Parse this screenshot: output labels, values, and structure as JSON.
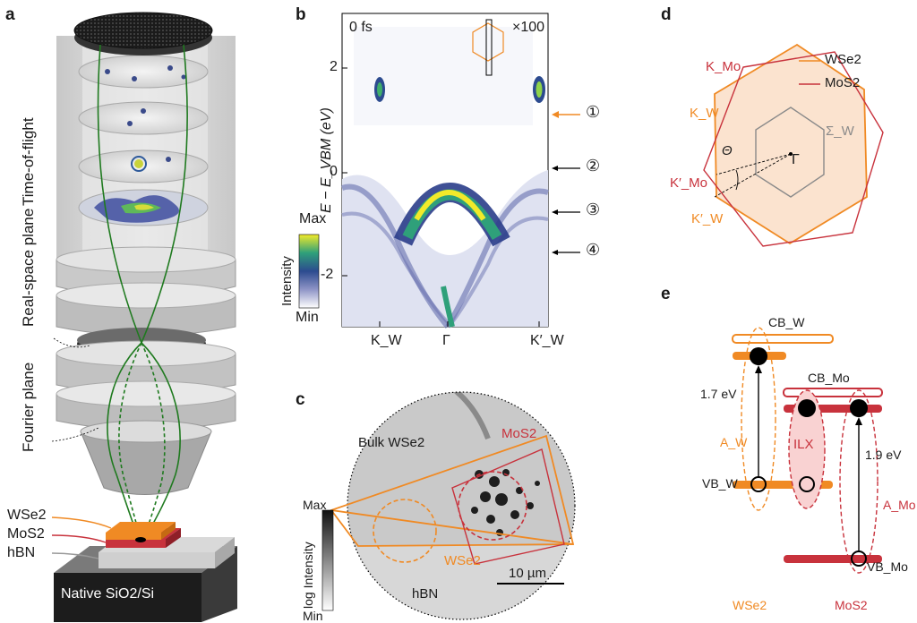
{
  "panels": {
    "a": {
      "letter": "a",
      "detector_labels": [
        "Time-of-flight",
        "Real-space plane",
        "Fourier plane"
      ],
      "layers": [
        "WSe2",
        "MoS2",
        "hBN"
      ],
      "substrate": "Native SiO2/Si",
      "colors": {
        "wse2": "#f08a24",
        "mos2": "#c8323c",
        "hbn": "#bdbdbd",
        "trajectory": "#1f7a1f"
      }
    },
    "b": {
      "letter": "b",
      "time_label": "0 fs",
      "scale_label": "×100",
      "ylabel": "E − E_VBM (eV)",
      "colorbar_title": "Intensity",
      "colorbar_max": "Max",
      "colorbar_min": "Min",
      "markers": [
        "①",
        "②",
        "③",
        "④"
      ]
    },
    "c": {
      "letter": "c",
      "labels": {
        "bulk": "Bulk WSe2",
        "mos2": "MoS2",
        "wse2": "WSe2",
        "hbn": "hBN"
      },
      "scalebar": "10 µm",
      "colorbar_title": "log Intensity",
      "colorbar_max": "Max",
      "colorbar_min": "Min"
    },
    "d": {
      "letter": "d",
      "legend": [
        "WSe2",
        "MoS2"
      ],
      "labels": {
        "k_mo": "K_Mo",
        "k_w": "K_W",
        "kp_mo": "K′_Mo",
        "kp_w": "K′_W",
        "sigma_w": "Σ_W",
        "gamma": "Γ",
        "theta": "Θ"
      },
      "colors": {
        "wse2": "#f08a24",
        "mos2": "#c8323c",
        "fill": "#fbe3cf",
        "sigma": "#8a8a8a"
      }
    },
    "e": {
      "letter": "e",
      "labels": {
        "cb_w": "CB_W",
        "cb_mo": "CB_Mo",
        "vb_w": "VB_W",
        "vb_mo": "VB_Mo",
        "a_w": "A_W",
        "a_mo": "A_Mo",
        "ilx": "ILX",
        "wse2": "WSe2",
        "mos2": "MoS2"
      },
      "energies": [
        "1.7 eV",
        "1.9 eV"
      ]
    }
  },
  "chart_data": {
    "type": "heatmap",
    "title": "",
    "xlabel": "",
    "ylabel": "E − E_VBM (eV)",
    "x_ticks": [
      "K_W",
      "Γ",
      "K′_W"
    ],
    "y_ticks": [
      2,
      0,
      -2
    ],
    "ylim": [
      -3,
      3
    ],
    "colormap": "viridis-like (Min→Max)",
    "annotations": [
      {
        "marker": "①",
        "energy_eV": 1.7
      },
      {
        "marker": "②",
        "energy_eV": 0.0
      },
      {
        "marker": "③",
        "energy_eV": -0.9
      },
      {
        "marker": "④",
        "energy_eV": -1.45
      }
    ],
    "features": {
      "excited_state_energy_eV": 1.7,
      "excited_state_kpoints": [
        "K_W",
        "K′_W"
      ],
      "vbm_at": "Γ",
      "enhancement_above_eV": 0.8,
      "enhancement_factor": "×100"
    }
  }
}
